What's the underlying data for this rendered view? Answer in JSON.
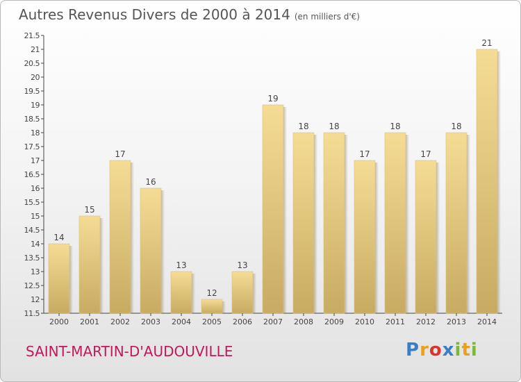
{
  "header": {
    "title": "Autres Revenus Divers de 2000 à 2014",
    "unit": "(en milliers d'€)"
  },
  "footer": {
    "commune": "SAINT-MARTIN-D'AUDOUVILLE",
    "brand": "Proxiti"
  },
  "colors": {
    "bar_light": "#f5dc95",
    "bar_dark": "#c8ab62",
    "commune": "#c0185c",
    "brand_letters": [
      "#3a7fc4",
      "#e8a020",
      "#d9352b",
      "#3a7fc4",
      "#7bb83a",
      "#e8a020",
      "#7bb83a"
    ]
  },
  "chart_data": {
    "type": "bar",
    "categories": [
      "2000",
      "2001",
      "2002",
      "2003",
      "2004",
      "2005",
      "2006",
      "2007",
      "2008",
      "2009",
      "2010",
      "2011",
      "2012",
      "2013",
      "2014"
    ],
    "values": [
      14,
      15,
      17,
      16,
      13,
      12,
      13,
      19,
      18,
      18,
      17,
      18,
      17,
      18,
      21
    ],
    "ylim": [
      11.5,
      21.5
    ],
    "yticks": [
      "11.5",
      "12",
      "12.5",
      "13",
      "13.5",
      "14",
      "14.5",
      "15",
      "15.5",
      "16",
      "16.5",
      "17",
      "17.5",
      "18",
      "18.5",
      "19",
      "19.5",
      "20",
      "20.5",
      "21",
      "21.5"
    ],
    "grid": false
  }
}
